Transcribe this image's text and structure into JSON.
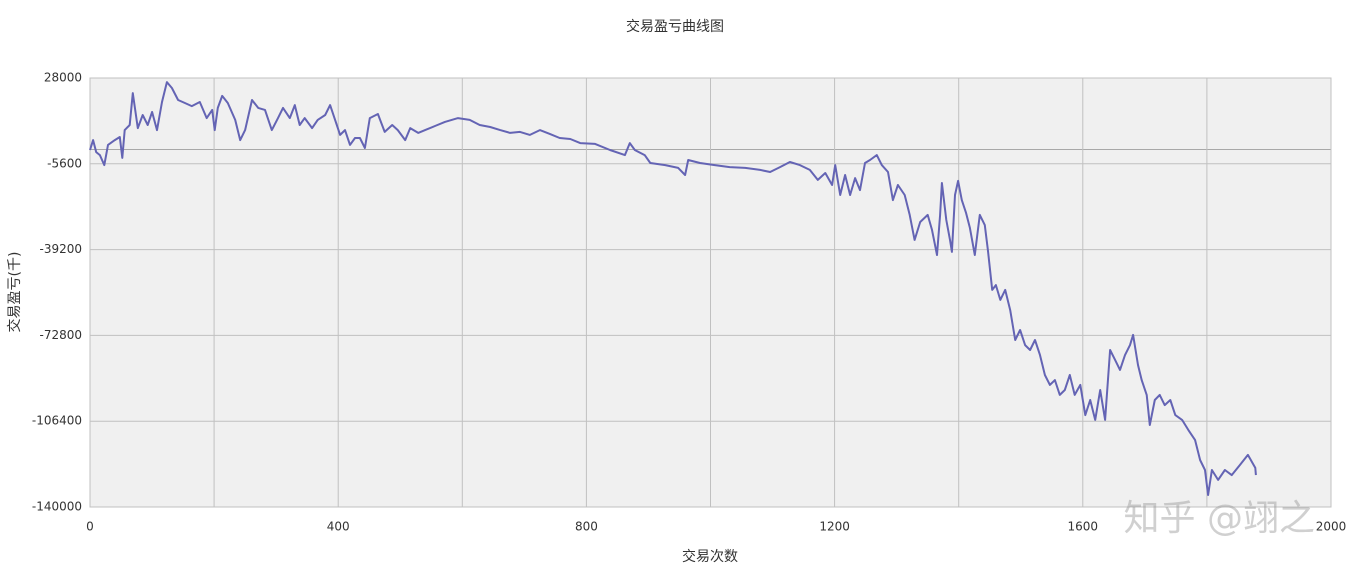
{
  "chart_data": {
    "type": "line",
    "title": "交易盈亏曲线图",
    "xlabel": "交易次数",
    "ylabel": "交易盈亏(千)",
    "watermark": "知乎 @翊之",
    "color": "#6464b4",
    "grid": true,
    "zero_line": true,
    "xlim": [
      0,
      2000
    ],
    "xticks": [
      0,
      400,
      800,
      1200,
      1600,
      2000
    ],
    "x_minor_grid": [
      200,
      600,
      1000,
      1400,
      1800
    ],
    "ylim": [
      -140000,
      28000
    ],
    "yticks": [
      28000,
      -5600,
      -39200,
      -72800,
      -106400,
      -140000
    ],
    "x": [
      0,
      5,
      10,
      16,
      23,
      29,
      40,
      48,
      52,
      56,
      64,
      69,
      77,
      85,
      93,
      100,
      108,
      116,
      124,
      132,
      142,
      153,
      164,
      177,
      188,
      197,
      201,
      206,
      213,
      222,
      234,
      242,
      250,
      261,
      271,
      282,
      293,
      303,
      311,
      322,
      330,
      338,
      346,
      358,
      367,
      379,
      387,
      395,
      403,
      411,
      419,
      427,
      435,
      443,
      451,
      464,
      475,
      487,
      496,
      508,
      516,
      529,
      540,
      556,
      572,
      593,
      612,
      628,
      645,
      661,
      677,
      693,
      709,
      725,
      741,
      757,
      774,
      790,
      814,
      838,
      862,
      870,
      878,
      894,
      903,
      927,
      948,
      959,
      964,
      983,
      1007,
      1031,
      1056,
      1080,
      1096,
      1112,
      1128,
      1144,
      1160,
      1173,
      1185,
      1196,
      1201,
      1209,
      1217,
      1225,
      1233,
      1241,
      1249,
      1257,
      1268,
      1276,
      1286,
      1294,
      1302,
      1313,
      1321,
      1329,
      1338,
      1350,
      1357,
      1365,
      1370,
      1373,
      1380,
      1386,
      1389,
      1394,
      1399,
      1405,
      1412,
      1418,
      1426,
      1434,
      1442,
      1447,
      1454,
      1460,
      1467,
      1475,
      1483,
      1491,
      1499,
      1507,
      1515,
      1523,
      1531,
      1539,
      1547,
      1555,
      1563,
      1571,
      1579,
      1587,
      1596,
      1604,
      1612,
      1620,
      1628,
      1636,
      1644,
      1652,
      1660,
      1668,
      1676,
      1681,
      1689,
      1695,
      1703,
      1708,
      1716,
      1724,
      1732,
      1741,
      1749,
      1760,
      1770,
      1781,
      1789,
      1797,
      1802,
      1808,
      1818,
      1829,
      1840,
      1853,
      1866,
      1878,
      1879
    ],
    "values": [
      -200,
      3700,
      -1000,
      -2200,
      -6100,
      1800,
      3700,
      4900,
      -3300,
      7600,
      9600,
      22100,
      8400,
      13500,
      9600,
      14700,
      7600,
      18600,
      26400,
      24100,
      19400,
      18200,
      17000,
      18600,
      12300,
      15500,
      7600,
      16300,
      21000,
      18200,
      11600,
      3700,
      7600,
      19400,
      16300,
      15500,
      7600,
      12300,
      16300,
      12300,
      17400,
      9600,
      12300,
      8400,
      11600,
      13500,
      17400,
      11600,
      5700,
      7600,
      1800,
      4500,
      4500,
      600,
      12300,
      13900,
      6900,
      9600,
      7600,
      3700,
      8400,
      6500,
      7600,
      9200,
      10800,
      12300,
      11600,
      9600,
      8800,
      7600,
      6500,
      6900,
      5700,
      7600,
      6100,
      4500,
      4100,
      2500,
      2200,
      -200,
      -2200,
      2500,
      -200,
      -2200,
      -5300,
      -6100,
      -7200,
      -10000,
      -4100,
      -5300,
      -6100,
      -6900,
      -7200,
      -8000,
      -8800,
      -6900,
      -4900,
      -6100,
      -8000,
      -11900,
      -9200,
      -13900,
      -6100,
      -17800,
      -10000,
      -17800,
      -11200,
      -15900,
      -5300,
      -4100,
      -2200,
      -6100,
      -8800,
      -19800,
      -13900,
      -17800,
      -25600,
      -35400,
      -28400,
      -25600,
      -31500,
      -41300,
      -25600,
      -13100,
      -27600,
      -35400,
      -40100,
      -17800,
      -12300,
      -19800,
      -24900,
      -30700,
      -41300,
      -25600,
      -29600,
      -39400,
      -55000,
      -53100,
      -58900,
      -55000,
      -62900,
      -74600,
      -70700,
      -76600,
      -78500,
      -74600,
      -80500,
      -88300,
      -92200,
      -90300,
      -96100,
      -94200,
      -88300,
      -96100,
      -92200,
      -104000,
      -98100,
      -105900,
      -94200,
      -105900,
      -78500,
      -82400,
      -86300,
      -80500,
      -76600,
      -72600,
      -84400,
      -90300,
      -96100,
      -107900,
      -98100,
      -96100,
      -100100,
      -98100,
      -104000,
      -105900,
      -109800,
      -113800,
      -121600,
      -125500,
      -135300,
      -125500,
      -129400,
      -125500,
      -127500,
      -123600,
      -119600,
      -124700,
      -127500
    ]
  }
}
